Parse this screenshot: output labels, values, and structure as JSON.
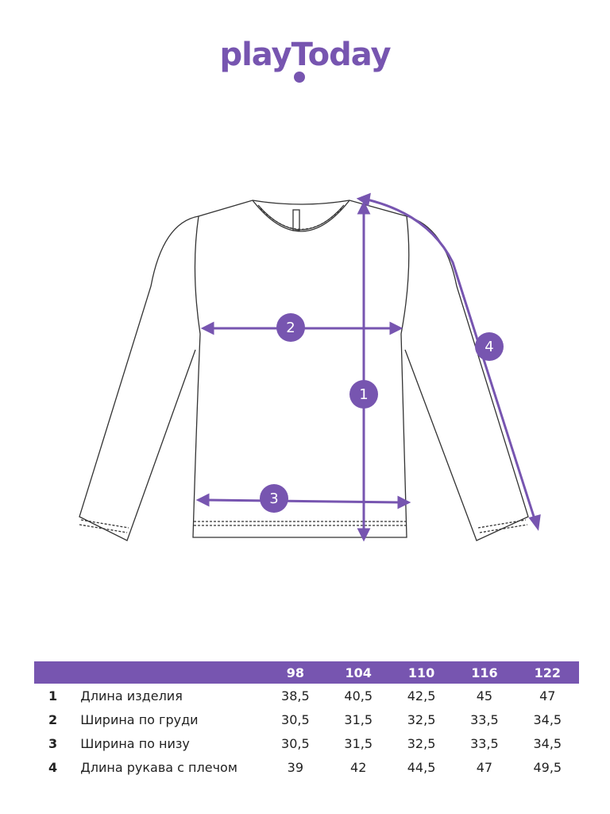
{
  "brand": {
    "logo_text": "playToday",
    "color": "#7755b0"
  },
  "diagram": {
    "markers": [
      "1",
      "2",
      "3",
      "4"
    ]
  },
  "size_table": {
    "sizes": [
      "98",
      "104",
      "110",
      "116",
      "122"
    ],
    "rows": [
      {
        "num": "1",
        "label": "Длина изделия",
        "values": [
          "38,5",
          "40,5",
          "42,5",
          "45",
          "47"
        ]
      },
      {
        "num": "2",
        "label": "Ширина по груди",
        "values": [
          "30,5",
          "31,5",
          "32,5",
          "33,5",
          "34,5"
        ]
      },
      {
        "num": "3",
        "label": "Ширина по низу",
        "values": [
          "30,5",
          "31,5",
          "32,5",
          "33,5",
          "34,5"
        ]
      },
      {
        "num": "4",
        "label": "Длина рукава с плечом",
        "values": [
          "39",
          "42",
          "44,5",
          "47",
          "49,5"
        ]
      }
    ]
  }
}
